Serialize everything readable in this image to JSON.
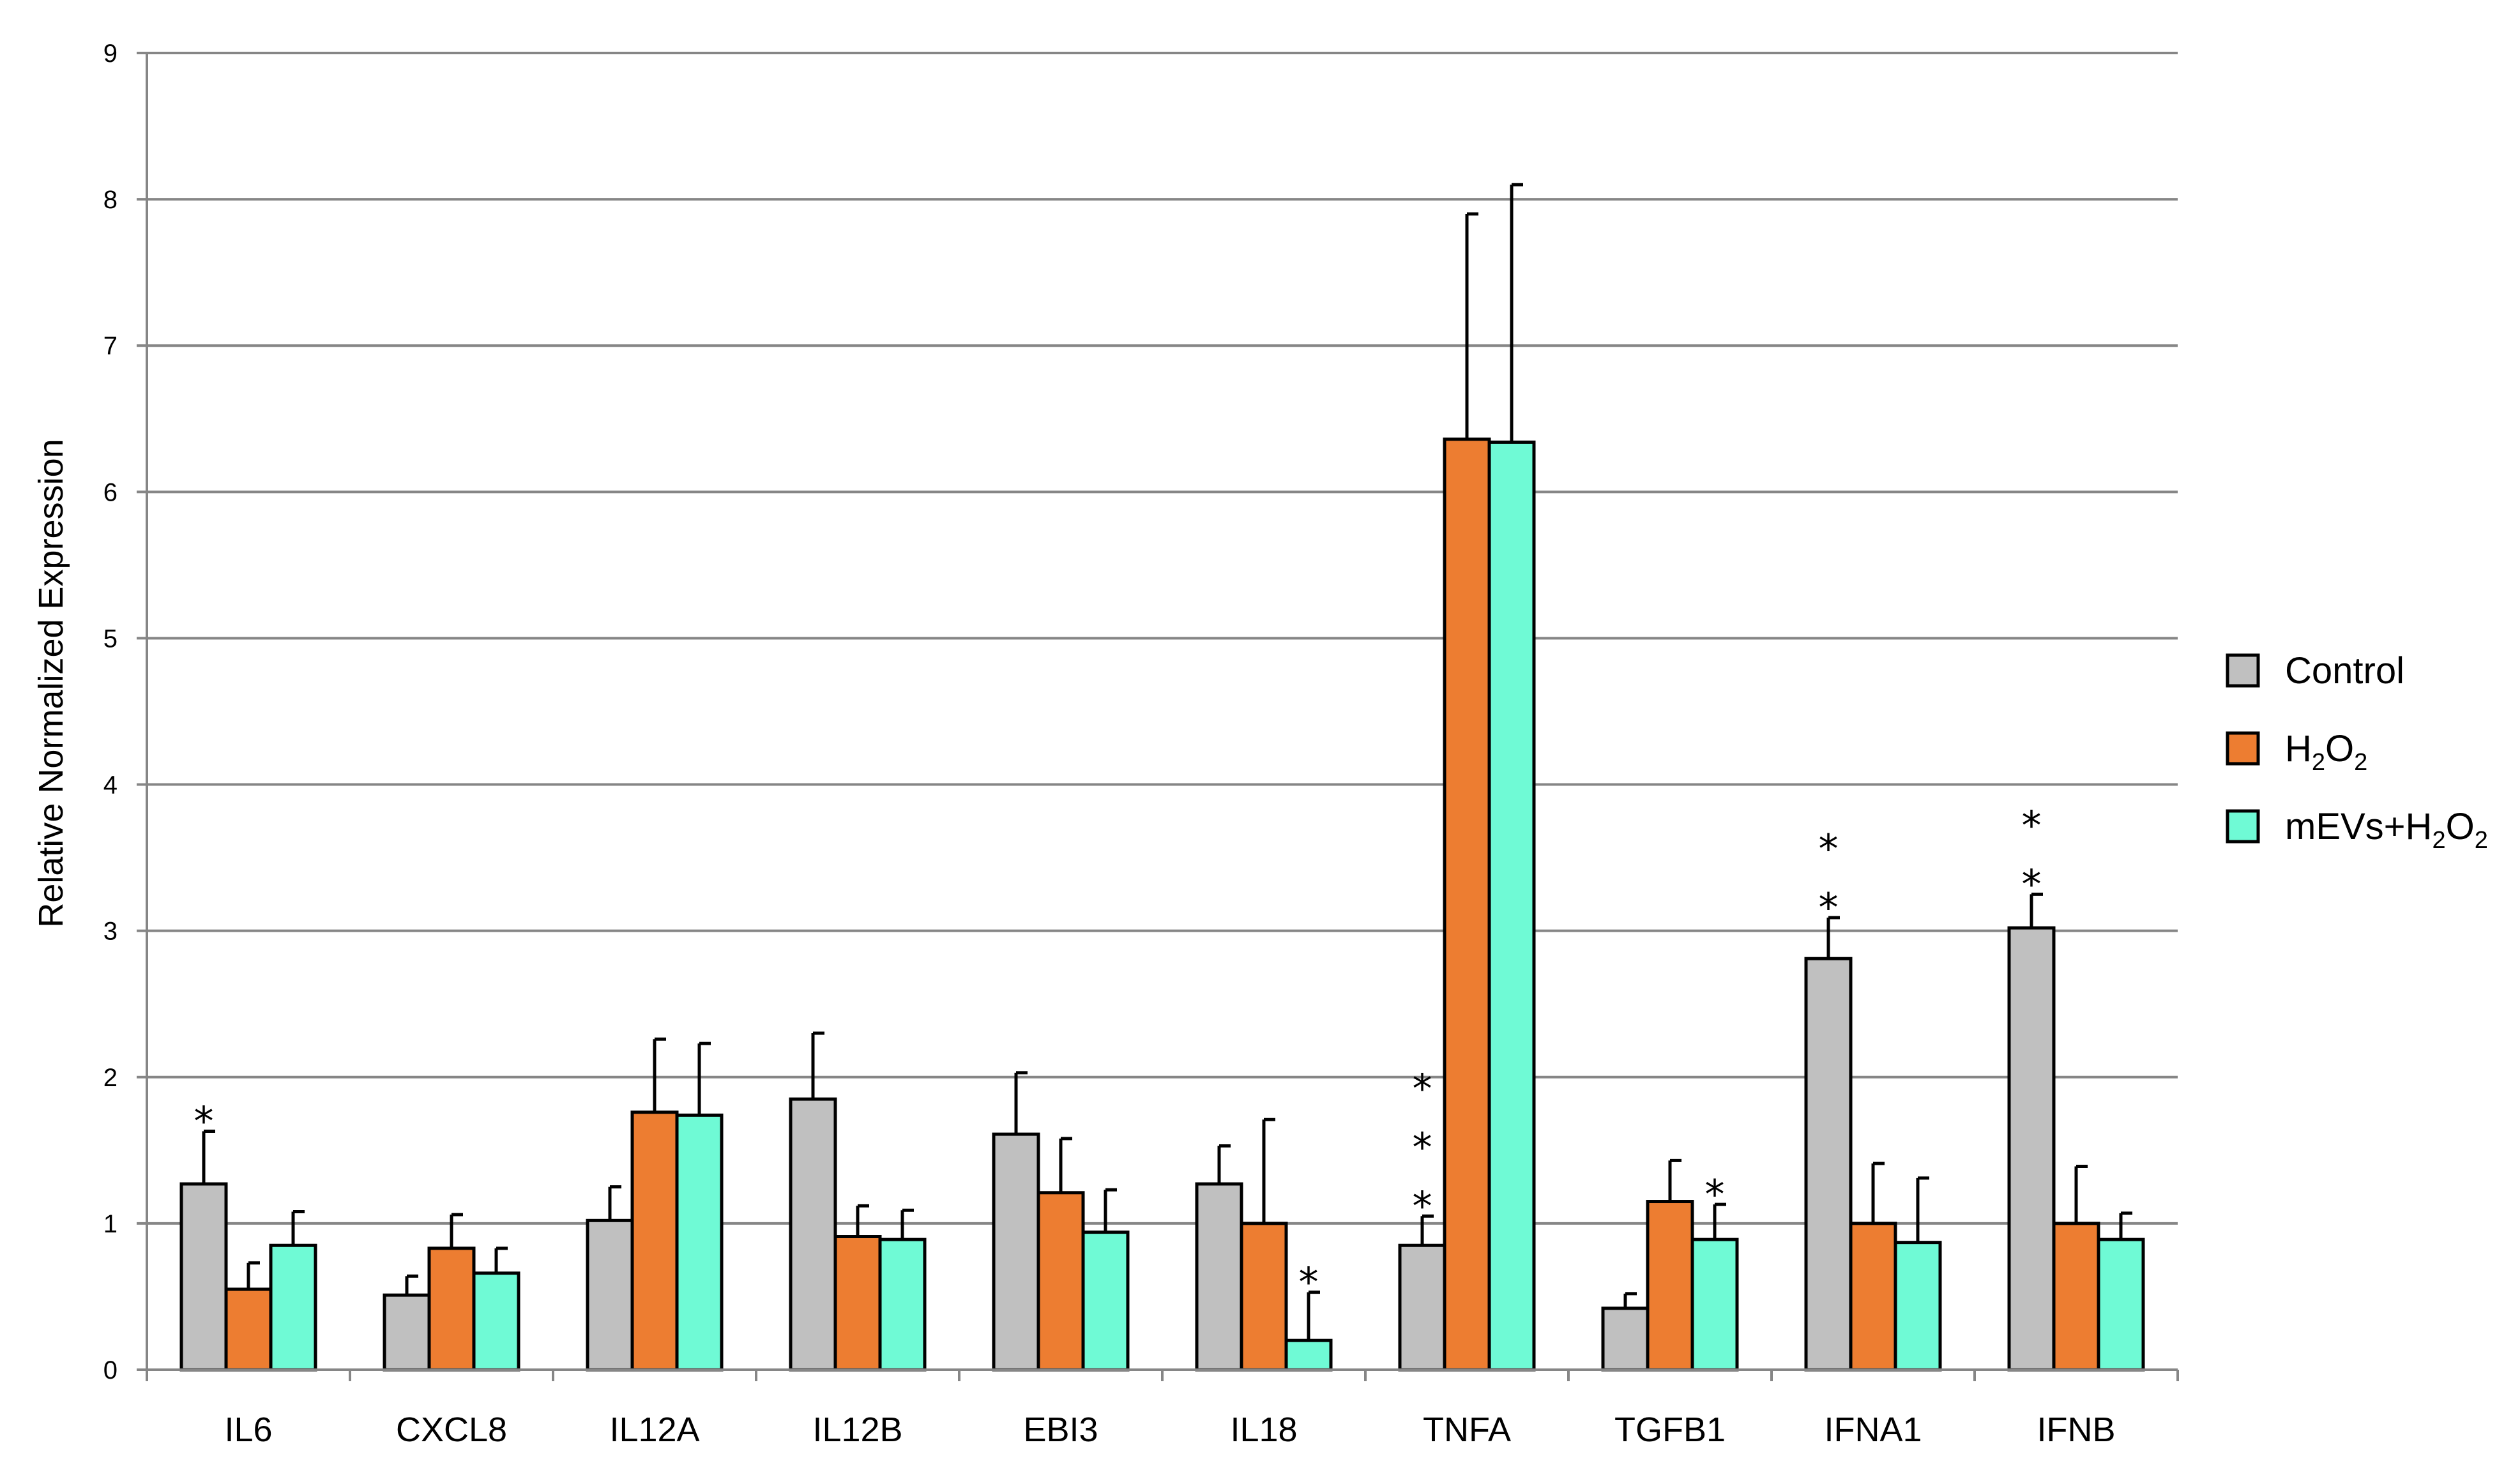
{
  "chart_data": {
    "type": "bar",
    "ylabel": "Relative Normalized Expression",
    "ylim": [
      0,
      9
    ],
    "yticks": [
      "0",
      "1",
      "2",
      "3",
      "4",
      "5",
      "6",
      "7",
      "8",
      "9"
    ],
    "grid": true,
    "legend_position": "right",
    "categories": [
      "IL6",
      "CXCL8",
      "IL12A",
      "IL12B",
      "EBI3",
      "IL18",
      "TNFA",
      "TGFB1",
      "IFNA1",
      "IFNB"
    ],
    "series": [
      {
        "name": "Control",
        "color": "#c0c0c0",
        "values": [
          1.27,
          0.51,
          1.02,
          1.85,
          1.61,
          1.27,
          0.85,
          0.42,
          2.81,
          3.02
        ],
        "errors": [
          0.36,
          0.13,
          0.23,
          0.45,
          0.42,
          0.26,
          0.2,
          0.1,
          0.28,
          0.23
        ],
        "annotations": [
          "*",
          "",
          "",
          "",
          "",
          "",
          "***",
          "",
          "**",
          "**"
        ]
      },
      {
        "name": "H2O2",
        "color": "#ed7d31",
        "values": [
          0.55,
          0.83,
          1.76,
          0.91,
          1.21,
          1.0,
          6.36,
          1.15,
          1.0,
          1.0
        ],
        "errors": [
          0.18,
          0.23,
          0.5,
          0.21,
          0.37,
          0.71,
          1.54,
          0.28,
          0.41,
          0.39
        ],
        "annotations": [
          "",
          "",
          "",
          "",
          "",
          "",
          "",
          "",
          "",
          ""
        ]
      },
      {
        "name": "mEVs+H2O2",
        "color": "#6ffad5",
        "values": [
          0.85,
          0.66,
          1.74,
          0.89,
          0.94,
          0.2,
          6.34,
          0.89,
          0.87,
          0.89
        ],
        "errors": [
          0.23,
          0.17,
          0.49,
          0.2,
          0.29,
          0.33,
          1.76,
          0.24,
          0.44,
          0.18
        ],
        "annotations": [
          "",
          "",
          "",
          "",
          "",
          "*",
          "",
          "*",
          "",
          ""
        ]
      }
    ],
    "legend": [
      {
        "base": "Control",
        "sub1": "",
        "mid": "",
        "sub2": ""
      },
      {
        "base": "H",
        "sub1": "2",
        "mid": "O",
        "sub2": "2"
      },
      {
        "base": "mEVs+H",
        "sub1": "2",
        "mid": "O",
        "sub2": "2"
      }
    ]
  }
}
